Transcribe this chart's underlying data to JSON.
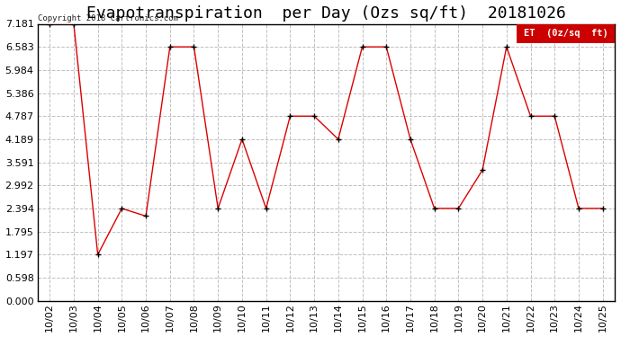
{
  "title": "Evapotranspiration  per Day (Ozs sq/ft)  20181026",
  "dates": [
    "10/02",
    "10/03",
    "10/04",
    "10/05",
    "10/06",
    "10/07",
    "10/08",
    "10/09",
    "10/10",
    "10/11",
    "10/12",
    "10/13",
    "10/14",
    "10/15",
    "10/16",
    "10/17",
    "10/18",
    "10/19",
    "10/20",
    "10/21",
    "10/22",
    "10/23",
    "10/24",
    "10/25"
  ],
  "values": [
    7.181,
    7.181,
    1.197,
    2.394,
    2.195,
    6.583,
    6.583,
    2.394,
    4.189,
    2.394,
    4.787,
    4.787,
    4.189,
    6.583,
    6.583,
    4.189,
    2.394,
    2.394,
    3.392,
    6.583,
    4.787,
    4.787,
    2.394,
    2.394
  ],
  "line_color": "#dd0000",
  "marker_color": "#000000",
  "bg_color": "#ffffff",
  "grid_color": "#c0c0c0",
  "yticks": [
    0.0,
    0.598,
    1.197,
    1.795,
    2.394,
    2.992,
    3.591,
    4.189,
    4.787,
    5.386,
    5.984,
    6.583,
    7.181
  ],
  "legend_label": "ET  (0z/sq  ft)",
  "legend_bg": "#cc0000",
  "legend_text_color": "#ffffff",
  "copyright_text": "Copyright 2018 Cartronics.com",
  "title_fontsize": 13,
  "tick_fontsize": 8,
  "label_fontsize": 7,
  "ylim": [
    0.0,
    7.181
  ],
  "border_color": "#000000"
}
